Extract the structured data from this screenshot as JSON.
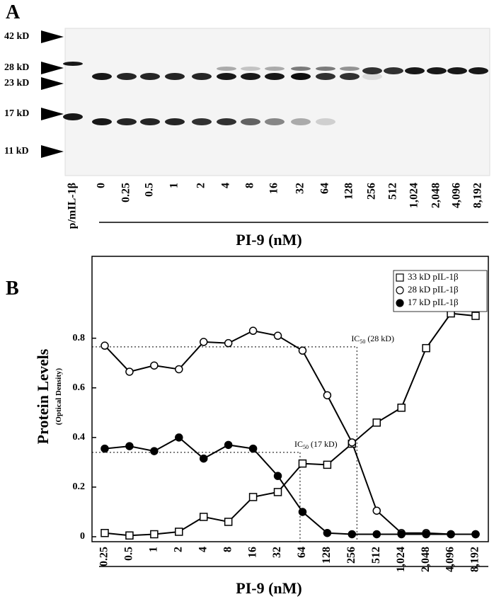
{
  "panel_a": {
    "label": "A",
    "markers": [
      "42 kD",
      "28 kD",
      "23 kD",
      "17 kD",
      "11 kD"
    ],
    "lanes": [
      "p/mIL-1β",
      "0",
      "0.25",
      "0.5",
      "1",
      "2",
      "4",
      "8",
      "16",
      "32",
      "64",
      "128",
      "256",
      "512",
      "1,024",
      "2,048",
      "4,096",
      "8,192"
    ],
    "x_label": "PI-9 (nM)"
  },
  "chart_data": {
    "type": "line",
    "panel_label": "B",
    "y_label": "Protein Levels",
    "y_sublabel": "(Optical Density)",
    "x_label": "PI-9 (nM)",
    "categories": [
      "0.25",
      "0.5",
      "1",
      "2",
      "4",
      "8",
      "16",
      "32",
      "64",
      "128",
      "256",
      "512",
      "1,024",
      "2,048",
      "4,096",
      "8,192"
    ],
    "ylim": [
      -0.02,
      1.13
    ],
    "yticks": [
      0,
      0.2,
      0.4,
      0.6,
      0.8
    ],
    "legend": "right",
    "series": [
      {
        "name": "33 kD pIL-1β",
        "color": "#000000",
        "marker": "square",
        "filled": false,
        "values": [
          0.015,
          0.005,
          0.01,
          0.02,
          0.08,
          0.06,
          0.16,
          0.18,
          0.295,
          0.29,
          0.375,
          0.46,
          0.52,
          0.76,
          0.9,
          0.89
        ]
      },
      {
        "name": "28 kD pIL-1β",
        "color": "#000000",
        "marker": "circle",
        "filled": false,
        "values": [
          0.77,
          0.665,
          0.69,
          0.675,
          0.785,
          0.78,
          0.83,
          0.81,
          0.75,
          0.57,
          0.38,
          0.105,
          0.015,
          0.015,
          0.01,
          0.01
        ]
      },
      {
        "name": "17 kD pIL-1β",
        "color": "#000000",
        "marker": "circle",
        "filled": true,
        "values": [
          0.355,
          0.365,
          0.345,
          0.4,
          0.315,
          0.37,
          0.355,
          0.245,
          0.1,
          0.015,
          0.01,
          0.01,
          0.01,
          0.01,
          0.01,
          0.01
        ]
      }
    ],
    "annotations": [
      {
        "text": "IC",
        "sub": "50",
        "suffix": " (28 kD)",
        "x": 10.2,
        "y": 0.765
      },
      {
        "text": "IC",
        "sub": "50",
        "suffix": " (17 kD)",
        "x": 7.9,
        "y": 0.34
      }
    ]
  }
}
